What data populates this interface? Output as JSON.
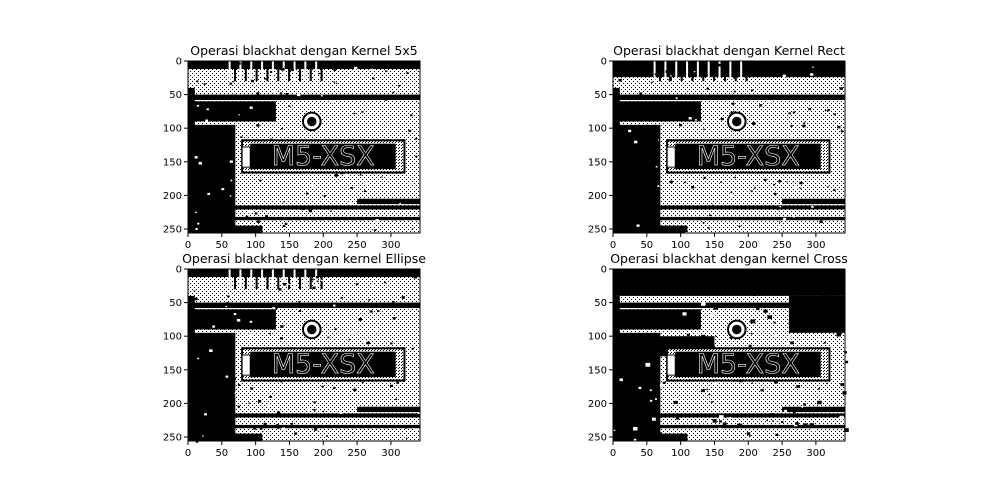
{
  "chart_data": [
    {
      "type": "heatmap",
      "title": "Operasi blackhat dengan Kernel 5x5",
      "xlim": [
        0,
        343
      ],
      "ylim": [
        0,
        256
      ],
      "xticks": [
        0,
        50,
        100,
        150,
        200,
        250,
        300
      ],
      "yticks": [
        0,
        50,
        100,
        150,
        200,
        250
      ],
      "colormap": "binary",
      "plate_text": "M5-XSX",
      "noise": 0.42
    },
    {
      "type": "heatmap",
      "title": "Operasi blackhat dengan Kernel Rect",
      "xlim": [
        0,
        343
      ],
      "ylim": [
        0,
        256
      ],
      "xticks": [
        0,
        50,
        100,
        150,
        200,
        250,
        300
      ],
      "yticks": [
        0,
        50,
        100,
        150,
        200,
        250
      ],
      "colormap": "binary",
      "plate_text": "M5-XSX",
      "noise": 0.42
    },
    {
      "type": "heatmap",
      "title": "Operasi blackhat dengan kernel Ellipse",
      "xlim": [
        0,
        343
      ],
      "ylim": [
        0,
        256
      ],
      "xticks": [
        0,
        50,
        100,
        150,
        200,
        250,
        300
      ],
      "yticks": [
        0,
        50,
        100,
        150,
        200,
        250
      ],
      "colormap": "binary",
      "plate_text": "M5-XSX",
      "noise": 0.45
    },
    {
      "type": "heatmap",
      "title": "Operasi blackhat dengan kernel Cross",
      "xlim": [
        0,
        343
      ],
      "ylim": [
        0,
        256
      ],
      "xticks": [
        0,
        50,
        100,
        150,
        200,
        250,
        300
      ],
      "yticks": [
        0,
        50,
        100,
        150,
        200,
        250
      ],
      "colormap": "binary",
      "plate_text": "M5-XSX",
      "noise": 0.65
    }
  ]
}
